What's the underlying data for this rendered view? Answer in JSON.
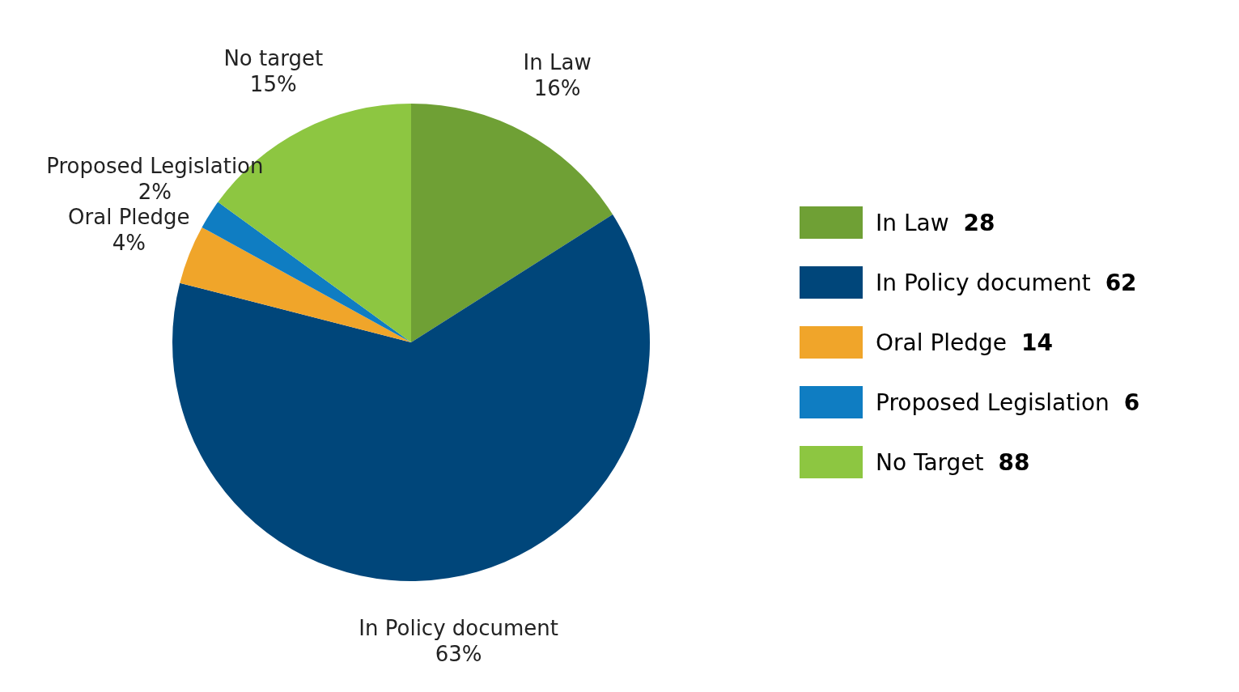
{
  "chart_data": {
    "type": "pie",
    "categories": [
      "In Law",
      "In Policy document",
      "Oral Pledge",
      "Proposed Legislation",
      "No target"
    ],
    "values": [
      16,
      63,
      4,
      2,
      15
    ],
    "colors": [
      "#6fa035",
      "#00467a",
      "#f0a52a",
      "#0f7dc2",
      "#8dc641"
    ],
    "value_labels": [
      "16%",
      "63%",
      "4%",
      "2%",
      "15%"
    ],
    "annotations": [
      "In Law 28",
      "In Policy document 62",
      "Oral Pledge 14",
      "Proposed Legislation 6",
      "No Target 88"
    ]
  }
}
